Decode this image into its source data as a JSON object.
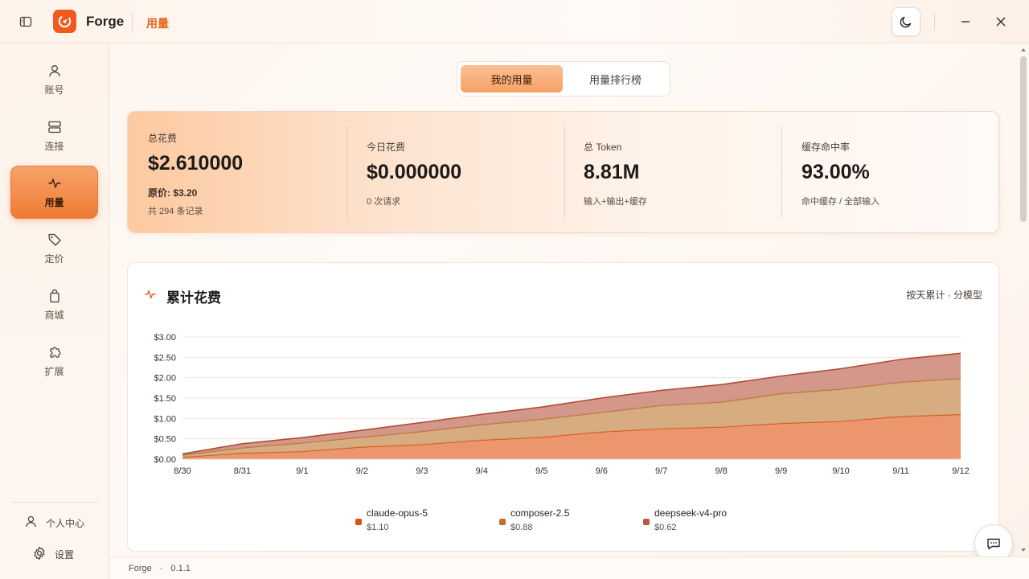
{
  "titlebar": {
    "app_name": "Forge",
    "page": "用量"
  },
  "sidebar": {
    "items": [
      {
        "label": "账号",
        "icon": "user-icon"
      },
      {
        "label": "连接",
        "icon": "server-icon"
      },
      {
        "label": "用量",
        "icon": "activity-icon",
        "active": true
      },
      {
        "label": "定价",
        "icon": "tag-icon"
      },
      {
        "label": "商城",
        "icon": "shopping-bag-icon"
      },
      {
        "label": "扩展",
        "icon": "puzzle-icon"
      }
    ],
    "bottom": [
      {
        "label": "个人中心",
        "icon": "user-icon"
      },
      {
        "label": "设置",
        "icon": "gear-icon"
      }
    ]
  },
  "tabs": [
    {
      "label": "我的用量",
      "active": true
    },
    {
      "label": "用量排行榜",
      "active": false
    }
  ],
  "stats": {
    "total": {
      "label": "总花费",
      "value": "$2.610000",
      "original": "原价: $3.20",
      "records": "共 294 条记录"
    },
    "today": {
      "label": "今日花费",
      "value": "$0.000000",
      "sub": "0 次请求"
    },
    "tokens": {
      "label": "总 Token",
      "value": "8.81M",
      "sub": "输入+输出+缓存"
    },
    "cache": {
      "label": "缓存命中率",
      "value": "93.00%",
      "sub": "命中缓存 / 全部输入"
    }
  },
  "chart_card": {
    "title": "累计花费",
    "mode": "按天累计 · 分模型"
  },
  "chart_data": {
    "type": "area",
    "stacked": true,
    "categories": [
      "8/30",
      "8/31",
      "9/1",
      "9/2",
      "9/3",
      "9/4",
      "9/5",
      "9/6",
      "9/7",
      "9/8",
      "9/9",
      "9/10",
      "9/11",
      "9/12"
    ],
    "series": [
      {
        "name": "claude-opus-5",
        "total": "$1.10",
        "color": "#e2662a",
        "values": [
          0.05,
          0.15,
          0.19,
          0.3,
          0.36,
          0.47,
          0.54,
          0.67,
          0.75,
          0.79,
          0.88,
          0.93,
          1.05,
          1.1
        ]
      },
      {
        "name": "composer-2.5",
        "total": "$0.88",
        "color": "#b8742f",
        "values": [
          0.05,
          0.13,
          0.21,
          0.24,
          0.32,
          0.38,
          0.44,
          0.48,
          0.57,
          0.61,
          0.73,
          0.79,
          0.84,
          0.88
        ]
      },
      {
        "name": "deepseek-v4-pro",
        "total": "$0.62",
        "color": "#b85a40",
        "values": [
          0.03,
          0.1,
          0.13,
          0.17,
          0.22,
          0.25,
          0.3,
          0.35,
          0.37,
          0.43,
          0.43,
          0.5,
          0.56,
          0.62
        ]
      }
    ],
    "y_ticks": [
      "$0.00",
      "$0.50",
      "$1.00",
      "$1.50",
      "$2.00",
      "$2.50",
      "$3.00"
    ],
    "ylim": [
      0,
      3
    ],
    "grid": true,
    "legend": "bottom-center"
  },
  "footer": {
    "app_name": "Forge",
    "separator": "·",
    "version": "0.1.1"
  }
}
